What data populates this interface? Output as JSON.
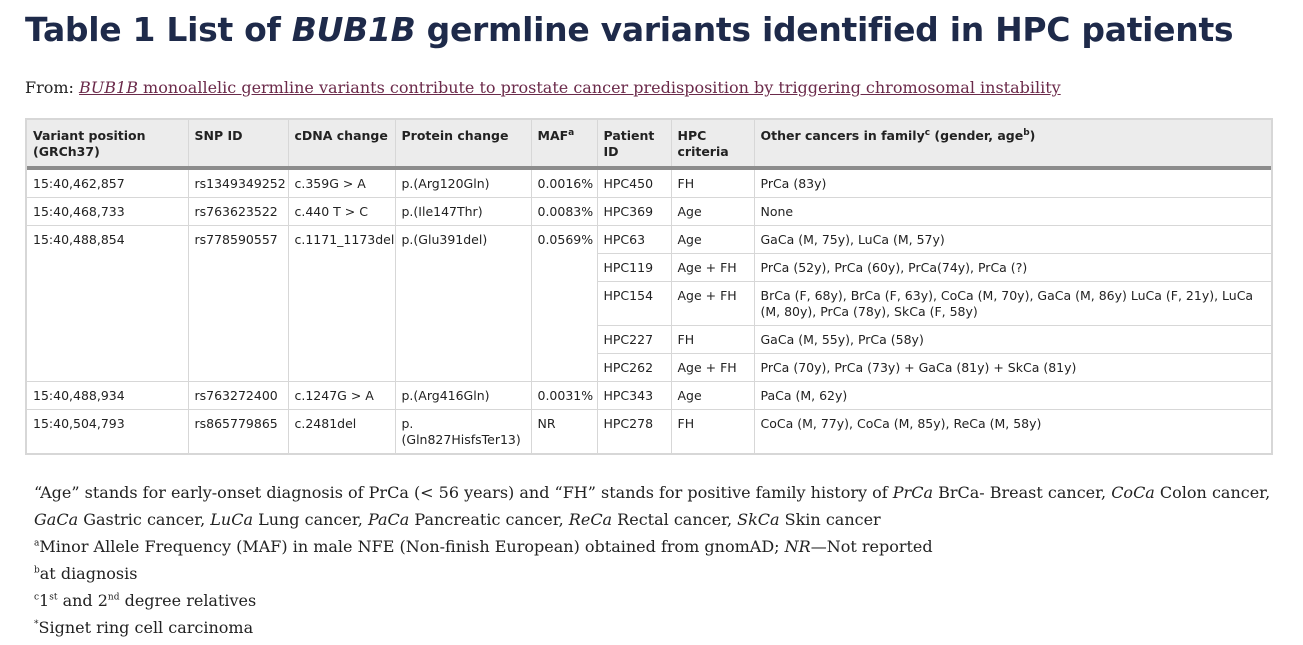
{
  "title": {
    "prefix": "Table 1 List of ",
    "gene": "BUB1B",
    "suffix": " germline variants identified in HPC patients"
  },
  "source": {
    "from_label": "From: ",
    "link_gene": "BUB1B",
    "link_rest": " monoallelic germline variants contribute to prostate cancer predisposition by triggering chromosomal instability"
  },
  "table": {
    "headers": {
      "variant_position": "Variant position (GRCh37)",
      "snp_id": "SNP ID",
      "cdna_change": "cDNA change",
      "protein_change": "Protein change",
      "maf": "MAF",
      "maf_sup": "a",
      "patient_id": "Patient ID",
      "hpc_criteria": "HPC criteria",
      "other_cancers": "Other cancers in family",
      "other_cancers_sup": "c",
      "other_cancers_paren": " (gender, age",
      "other_cancers_sup2": "b",
      "other_cancers_close": ")"
    },
    "rows": [
      {
        "pos": "15:40,462,857",
        "snp": "rs1349349252",
        "cdna": "c.359G > A",
        "protein": "p.(Arg120Gln)",
        "maf": "0.0016%",
        "patient": "HPC450",
        "criteria": "FH",
        "cancers": "PrCa (83y)"
      },
      {
        "pos": "15:40,468,733",
        "snp": "rs763623522",
        "cdna": "c.440 T > C",
        "protein": "p.(Ile147Thr)",
        "maf": "0.0083%",
        "patient": "HPC369",
        "criteria": "Age",
        "cancers": "None"
      },
      {
        "pos": "15:40,488,854",
        "snp": "rs778590557",
        "cdna": "c.1171_1173del",
        "protein": "p.(Glu391del)",
        "maf": "0.0569%",
        "patient": "HPC63",
        "criteria": "Age",
        "cancers": "GaCa (M, 75y), LuCa (M, 57y)"
      },
      {
        "patient": "HPC119",
        "criteria": "Age + FH",
        "cancers": "PrCa (52y), PrCa (60y), PrCa(74y), PrCa (?)"
      },
      {
        "patient": "HPC154",
        "criteria": "Age + FH",
        "cancers": "BrCa (F, 68y), BrCa (F, 63y), CoCa (M, 70y), GaCa (M, 86y) LuCa (F, 21y), LuCa (M, 80y), PrCa (78y), SkCa (F, 58y)"
      },
      {
        "patient": "HPC227",
        "criteria": "FH",
        "cancers": "GaCa (M, 55y), PrCa (58y)"
      },
      {
        "patient": "HPC262",
        "criteria": "Age + FH",
        "cancers": "PrCa (70y), PrCa (73y) + GaCa (81y) + SkCa (81y)"
      },
      {
        "pos": "15:40,488,934",
        "snp": "rs763272400",
        "cdna": "c.1247G > A",
        "protein": "p.(Arg416Gln)",
        "maf": "0.0031%",
        "patient": "HPC343",
        "criteria": "Age",
        "cancers": "PaCa (M, 62y)"
      },
      {
        "pos": "15:40,504,793",
        "snp": "rs865779865",
        "cdna": "c.2481del",
        "protein": "p.(Gln827HisfsTer13)",
        "maf": "NR",
        "patient": "HPC278",
        "criteria": "FH",
        "cancers": "CoCa (M, 77y), CoCa (M, 85y), ReCa (M, 58y)"
      }
    ]
  },
  "footnotes": {
    "line1": {
      "t1": "“Age” stands for early-onset diagnosis of PrCa (< 56 years) and “FH” stands for positive family history of ",
      "i1": "PrCa",
      "t2": " BrCa- Breast cancer, ",
      "i2": "CoCa",
      "t3": " Colon cancer, ",
      "i3": "GaCa",
      "t4": " Gastric cancer, ",
      "i4": "LuCa",
      "t5": " Lung cancer, ",
      "i5": "PaCa",
      "t6": " Pancreatic cancer, ",
      "i6": "ReCa",
      "t7": " Rectal cancer, ",
      "i7": "SkCa",
      "t8": " Skin cancer"
    },
    "line2": {
      "sup": "a",
      "t1": "Minor Allele Frequency (MAF) in male NFE (Non-finish European) obtained from gnomAD; ",
      "i1": "NR",
      "t2": "—Not reported"
    },
    "line3": {
      "sup": "b",
      "text": "at diagnosis"
    },
    "line4": {
      "sup": "c",
      "t1": "1",
      "sup1": "st",
      "t2": " and 2",
      "sup2": "nd",
      "t3": " degree relatives"
    },
    "line5": {
      "sup": "*",
      "text": "Signet ring cell carcinoma"
    }
  }
}
